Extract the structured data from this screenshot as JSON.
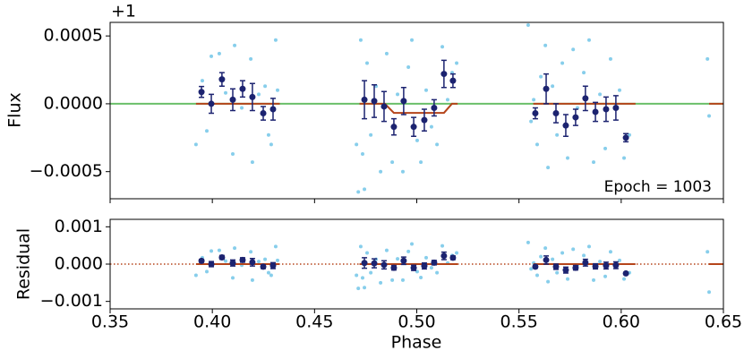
{
  "chart_data": [
    {
      "type": "scatter",
      "y_label": "Flux",
      "offset_text": "+1",
      "annotation": "Epoch = 1003",
      "xlim": [
        0.35,
        0.65
      ],
      "ylim": [
        -0.0007,
        0.0006
      ],
      "yticks": [
        {
          "value": 0.0005,
          "label": "0.0005"
        },
        {
          "value": 0,
          "label": "0.0000"
        },
        {
          "value": -0.0005,
          "label": "−0.0005"
        }
      ],
      "series": [
        {
          "style": "line",
          "color": "#6abf69",
          "x": [
            0.35,
            0.65
          ],
          "values": [
            0,
            0
          ]
        },
        {
          "style": "points",
          "color": "#87ceeb",
          "x": [
            0.392,
            0.3951,
            0.3973,
            0.3995,
            0.4034,
            0.4065,
            0.41,
            0.4109,
            0.4144,
            0.4188,
            0.4196,
            0.4227,
            0.4258,
            0.4275,
            0.4288,
            0.431,
            0.4319,
            0.4705,
            0.4714,
            0.4726,
            0.4735,
            0.4744,
            0.4757,
            0.4775,
            0.4801,
            0.4823,
            0.4853,
            0.488,
            0.4906,
            0.4932,
            0.4959,
            0.4976,
            0.5002,
            0.502,
            0.5046,
            0.5072,
            0.5099,
            0.5125,
            0.5151,
            0.5173,
            0.5195,
            0.5545,
            0.5559,
            0.5572,
            0.5589,
            0.5607,
            0.5629,
            0.5642,
            0.5664,
            0.5686,
            0.5712,
            0.5738,
            0.5765,
            0.5786,
            0.5817,
            0.5843,
            0.5865,
            0.5896,
            0.5922,
            0.5948,
            0.5975,
            0.5992,
            0.6014,
            0.604,
            0.6422,
            0.643
          ],
          "values": [
            -0.0003,
            0.00017,
            -0.0002,
            0.00035,
            0.00037,
            8e-05,
            -0.00037,
            0.00043,
            -3e-05,
            0.00033,
            -0.00043,
            7e-05,
            0.00013,
            -0.00023,
            -0.0003,
            0.00047,
            0.0001,
            -0.0003,
            -0.00065,
            0.00047,
            -0.00037,
            -0.00063,
            0.0003,
            -0.00023,
            0.00013,
            -0.0005,
            0.00037,
            -0.00043,
            7e-05,
            -0.0005,
            0.00027,
            0.00047,
            -0.00027,
            -0.00043,
            0.0001,
            -0.00017,
            -0.0003,
            0.00042,
            3e-05,
            0.00023,
            0.0003,
            0.00058,
            -0.00013,
            3e-05,
            -0.0003,
            0.0002,
            0.00043,
            -0.00047,
            0.00013,
            -0.00023,
            0.0003,
            -0.0004,
            0.0004,
            -3e-05,
            0.00023,
            0.00047,
            -0.00043,
            7e-05,
            -0.00033,
            0.00033,
            -3e-05,
            0.0001,
            -0.0004,
            -0.00023,
            0.00033,
            -9e-05
          ]
        },
        {
          "style": "line",
          "color": "#b5451b",
          "x": [
            0.392,
            0.433,
            null,
            0.472,
            0.4844,
            0.4888,
            0.5133,
            0.5172,
            0.52,
            null,
            0.557,
            0.607,
            null,
            0.643,
            0.65
          ],
          "values": [
            0,
            0,
            null,
            0,
            0,
            -6.7e-05,
            -6.7e-05,
            0,
            0,
            null,
            0,
            0,
            null,
            0,
            0
          ]
        },
        {
          "style": "errorbar",
          "color": "#1c2370",
          "x": [
            0.3947,
            0.3995,
            0.4047,
            0.41,
            0.4148,
            0.4196,
            0.4249,
            0.4297,
            0.4744,
            0.4792,
            0.484,
            0.4888,
            0.4936,
            0.4985,
            0.5037,
            0.5085,
            0.5133,
            0.5177,
            0.558,
            0.5633,
            0.5681,
            0.5729,
            0.5777,
            0.5825,
            0.5874,
            0.5926,
            0.5974,
            0.6023
          ],
          "values": [
            8.7e-05,
            0,
            0.00018,
            3e-05,
            0.00011,
            5e-05,
            -7e-05,
            -4e-05,
            3e-05,
            2e-05,
            -2e-05,
            -0.00017,
            2e-05,
            -0.00017,
            -0.00012,
            -3e-05,
            0.00022,
            0.00017,
            -7e-05,
            0.00011,
            -7e-05,
            -0.00016,
            -0.0001,
            4e-05,
            -6e-05,
            -4e-05,
            -3e-05,
            -0.00025
          ],
          "errors": [
            4e-05,
            7e-05,
            5e-05,
            8e-05,
            6e-05,
            0.0001,
            5e-05,
            8e-05,
            0.00014,
            0.00012,
            0.00011,
            6e-05,
            0.0001,
            7e-05,
            8e-05,
            6e-05,
            0.0001,
            5e-05,
            4e-05,
            0.00011,
            7e-05,
            8e-05,
            6e-05,
            9e-05,
            7e-05,
            9e-05,
            9e-05,
            3e-05
          ]
        }
      ]
    },
    {
      "type": "scatter",
      "y_label": "Residual",
      "x_label": "Phase",
      "xlim": [
        0.35,
        0.65
      ],
      "ylim": [
        -0.0012,
        0.0012
      ],
      "xticks": [
        0.35,
        {
          "value": 0.4,
          "label": "0.40"
        },
        0.45,
        {
          "value": 0.5,
          "label": "0.50"
        },
        0.55,
        {
          "value": 0.6,
          "label": "0.60"
        },
        0.65
      ],
      "yticks": [
        {
          "value": 0.001,
          "label": "0.001"
        },
        {
          "value": 0,
          "label": "0.000"
        },
        {
          "value": -0.001,
          "label": "−0.001"
        }
      ],
      "series": [
        {
          "style": "dotted",
          "color": "#b5451b",
          "x": [
            0.35,
            0.65
          ],
          "values": [
            0,
            0
          ]
        },
        {
          "style": "points",
          "color": "#87ceeb",
          "x": [
            0.392,
            0.3951,
            0.3973,
            0.3995,
            0.4034,
            0.4065,
            0.41,
            0.4109,
            0.4144,
            0.4188,
            0.4196,
            0.4227,
            0.4258,
            0.4275,
            0.4288,
            0.431,
            0.4319,
            0.4705,
            0.4714,
            0.4726,
            0.4735,
            0.4744,
            0.4757,
            0.4775,
            0.4801,
            0.4823,
            0.4853,
            0.488,
            0.4906,
            0.4932,
            0.4959,
            0.4976,
            0.5002,
            0.502,
            0.5046,
            0.5072,
            0.5099,
            0.5125,
            0.5151,
            0.5173,
            0.5195,
            0.5545,
            0.5559,
            0.5572,
            0.5589,
            0.5607,
            0.5629,
            0.5642,
            0.5664,
            0.5686,
            0.5712,
            0.5738,
            0.5765,
            0.5786,
            0.5817,
            0.5843,
            0.5865,
            0.5896,
            0.5922,
            0.5948,
            0.5975,
            0.5992,
            0.6014,
            0.604,
            0.6422,
            0.643
          ],
          "values": [
            -0.0003,
            0.00017,
            -0.0002,
            0.00035,
            0.00037,
            8e-05,
            -0.00037,
            0.00043,
            -3e-05,
            0.00033,
            -0.00043,
            7e-05,
            0.00013,
            -0.00023,
            -0.0003,
            0.00047,
            0.0001,
            -0.0003,
            -0.00065,
            0.00047,
            -0.00037,
            -0.00063,
            0.0003,
            -0.00023,
            0.00013,
            -0.0005,
            0.00037,
            -0.00043,
            0.00014,
            -0.00043,
            0.00034,
            0.00054,
            -0.0002,
            -0.00036,
            0.00017,
            -0.0001,
            -0.00023,
            0.00049,
            3e-05,
            0.00023,
            0.0003,
            0.00058,
            -0.00013,
            3e-05,
            -0.0003,
            0.0002,
            0.00043,
            -0.00047,
            0.00013,
            -0.00023,
            0.0003,
            -0.0004,
            0.0004,
            -3e-05,
            0.00023,
            0.00047,
            -0.00043,
            7e-05,
            -0.00033,
            0.00033,
            -3e-05,
            0.0001,
            -0.0004,
            -0.00023,
            0.00033,
            -0.00075
          ]
        },
        {
          "style": "line",
          "color": "#b5451b",
          "x": [
            0.392,
            0.433,
            null,
            0.472,
            0.52,
            null,
            0.557,
            0.607,
            null,
            0.643,
            0.65
          ],
          "values": [
            0,
            0,
            null,
            0,
            0,
            null,
            0,
            0,
            null,
            0,
            0
          ]
        },
        {
          "style": "errorbar",
          "color": "#1c2370",
          "x": [
            0.3947,
            0.3995,
            0.4047,
            0.41,
            0.4148,
            0.4196,
            0.4249,
            0.4297,
            0.4744,
            0.4792,
            0.484,
            0.4888,
            0.4936,
            0.4985,
            0.5037,
            0.5085,
            0.5133,
            0.5177,
            0.558,
            0.5633,
            0.5681,
            0.5729,
            0.5777,
            0.5825,
            0.5874,
            0.5926,
            0.5974,
            0.6023
          ],
          "values": [
            8.7e-05,
            0,
            0.00018,
            3e-05,
            0.00011,
            5e-05,
            -7e-05,
            -4e-05,
            3e-05,
            2e-05,
            -2e-05,
            -0.0001,
            9e-05,
            -0.0001,
            -5e-05,
            4e-05,
            0.00022,
            0.00017,
            -7e-05,
            0.00011,
            -7e-05,
            -0.00016,
            -0.0001,
            4e-05,
            -6e-05,
            -4e-05,
            -3e-05,
            -0.00025
          ],
          "errors": [
            4e-05,
            7e-05,
            5e-05,
            8e-05,
            6e-05,
            0.0001,
            5e-05,
            8e-05,
            0.00014,
            0.00012,
            0.00011,
            6e-05,
            0.0001,
            7e-05,
            8e-05,
            6e-05,
            0.0001,
            5e-05,
            4e-05,
            0.00011,
            7e-05,
            8e-05,
            6e-05,
            9e-05,
            7e-05,
            9e-05,
            9e-05,
            3e-05
          ]
        }
      ]
    }
  ]
}
